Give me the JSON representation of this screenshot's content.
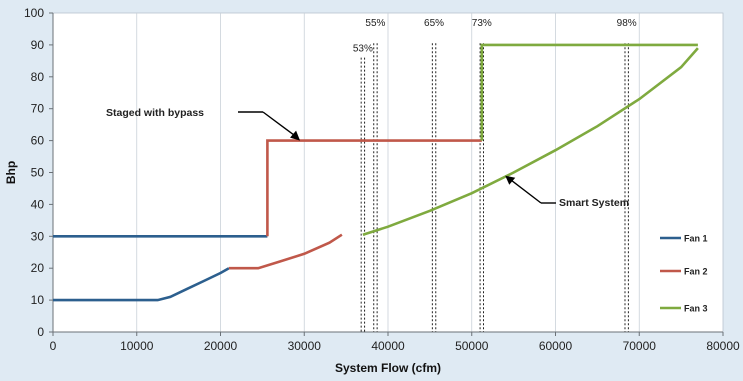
{
  "chart_data": {
    "type": "line",
    "xlabel": "System Flow (cfm)",
    "ylabel": "Bhp",
    "xlim": [
      0,
      80000
    ],
    "ylim": [
      0,
      100
    ],
    "x_ticks": [
      0,
      10000,
      20000,
      30000,
      40000,
      50000,
      60000,
      70000,
      80000
    ],
    "y_ticks": [
      0,
      10,
      20,
      30,
      40,
      50,
      60,
      70,
      80,
      90,
      100
    ],
    "grid": "vertical",
    "legend_position": "right",
    "series": [
      {
        "name": "Fan 1",
        "color": "#2c5f8e",
        "points": [
          [
            0,
            10
          ],
          [
            12500,
            10
          ],
          [
            14000,
            11
          ],
          [
            16000,
            13.5
          ],
          [
            18000,
            16
          ],
          [
            20000,
            18.5
          ],
          [
            21000,
            20
          ],
          [
            0,
            30
          ],
          [
            25600,
            30
          ]
        ]
      },
      {
        "name": "Fan 2",
        "color": "#c0584a",
        "points": [
          [
            21000,
            20
          ],
          [
            24500,
            20
          ],
          [
            27000,
            22
          ],
          [
            30000,
            24.5
          ],
          [
            33000,
            28
          ],
          [
            34500,
            30.5
          ],
          [
            37000,
            30.5
          ],
          [
            25600,
            30
          ],
          [
            25600,
            60
          ],
          [
            51200,
            60
          ]
        ]
      },
      {
        "name": "Fan 3",
        "color": "#7faa3f",
        "points": [
          [
            37000,
            30.5
          ],
          [
            40000,
            33
          ],
          [
            45000,
            38
          ],
          [
            50000,
            43.5
          ],
          [
            55000,
            50
          ],
          [
            60000,
            57
          ],
          [
            65000,
            64.5
          ],
          [
            70000,
            73
          ],
          [
            75000,
            83
          ],
          [
            77000,
            89
          ],
          [
            51200,
            60
          ],
          [
            51200,
            90
          ],
          [
            77000,
            90
          ]
        ]
      }
    ],
    "reference_lines": [
      {
        "x": 37000,
        "label": "53%"
      },
      {
        "x": 38500,
        "label": "55%"
      },
      {
        "x": 45500,
        "label": "65%"
      },
      {
        "x": 51200,
        "label": "73%"
      },
      {
        "x": 68500,
        "label": "98%"
      }
    ],
    "annotations": [
      {
        "text": "Staged with bypass",
        "point": [
          29500,
          60
        ]
      },
      {
        "text": "Smart System",
        "point": [
          54000,
          49
        ]
      }
    ]
  }
}
